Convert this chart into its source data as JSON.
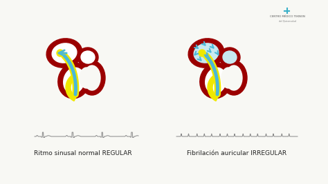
{
  "bg_color": "#f8f8f4",
  "title_left": "Ritmo sinusal normal REGULAR",
  "title_right": "Fibrilación auricular IRREGULAR",
  "logo_text": "CENTRO MÉDICO TEKNON",
  "logo_subtext": "del Quironsalud",
  "heart_color": "#9b0000",
  "yellow_color": "#f0e800",
  "blue_color": "#4ab8d8",
  "text_color": "#222222",
  "label_fontsize": 6.5
}
